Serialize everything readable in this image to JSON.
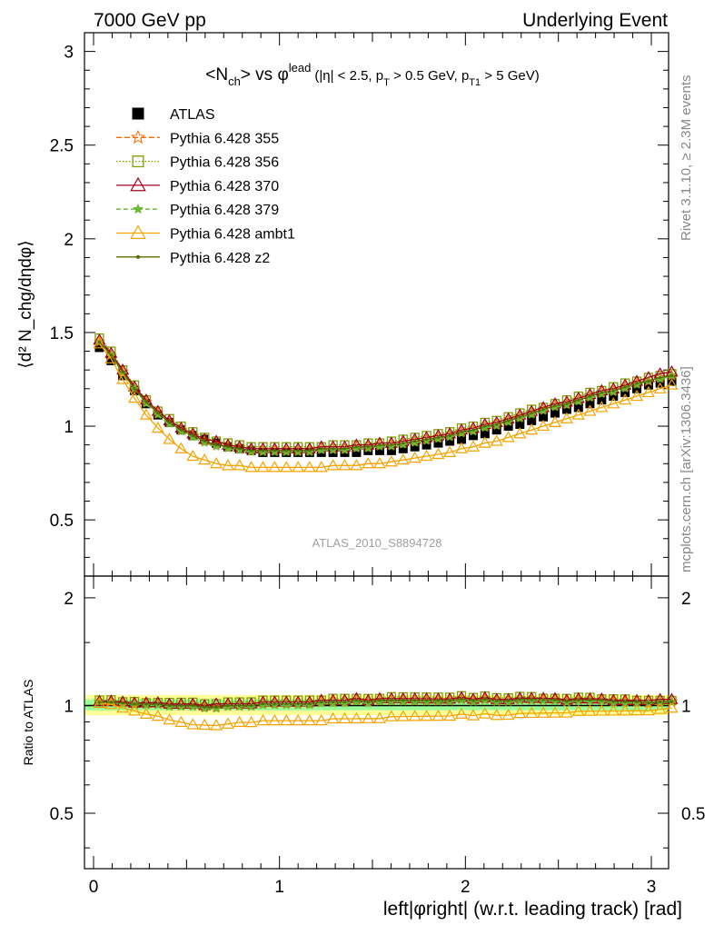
{
  "header": {
    "left": "7000 GeV pp",
    "right": "Underlying Event"
  },
  "side_labels": {
    "rivet": "Rivet 3.1.10, ≥ 2.3M events",
    "mcplots": "mcplots.cern.ch [arXiv:1306.3436]"
  },
  "analysis_id": "ATLAS_2010_S8894728",
  "title": {
    "main": "<N",
    "main_sub": "ch",
    "vs": "> vs φ",
    "vs_sup": "lead",
    "cuts_a": "(|η| < 2.5, p",
    "cuts_sub_a": "T",
    "cuts_b": " > 0.5 GeV, p",
    "cuts_sub_b": "T1",
    "cuts_c": " > 5 GeV)"
  },
  "ylabel_top": "⟨d² N_chg/dηdφ⟩",
  "ylabel_bottom": "Ratio to ATLAS",
  "xlabel": "left|φright| (w.r.t. leading track) [rad]",
  "colors": {
    "atlas": "#000000",
    "p355": "#ff6600",
    "p356": "#7f9f00",
    "p370": "#a0001a",
    "p379": "#66bb33",
    "ambt1": "#f5a300",
    "z2": "#556b00",
    "band_yellow": "#ffff99",
    "band_green": "#99ff99"
  },
  "chart_data": [
    {
      "type": "scatter",
      "panel": "main",
      "x": [
        0.0314,
        0.0942,
        0.157,
        0.22,
        0.283,
        0.346,
        0.408,
        0.471,
        0.534,
        0.597,
        0.66,
        0.723,
        0.785,
        0.848,
        0.911,
        0.974,
        1.037,
        1.1,
        1.162,
        1.225,
        1.288,
        1.351,
        1.414,
        1.477,
        1.539,
        1.602,
        1.665,
        1.728,
        1.791,
        1.854,
        1.916,
        1.979,
        2.042,
        2.105,
        2.168,
        2.231,
        2.293,
        2.356,
        2.419,
        2.482,
        2.545,
        2.608,
        2.67,
        2.733,
        2.796,
        2.859,
        2.922,
        2.985,
        3.047,
        3.11
      ],
      "xlim": [
        0,
        3.1416
      ],
      "ylim": [
        0.2,
        3.1
      ],
      "yticks": [
        0.5,
        1,
        1.5,
        2,
        2.5,
        3
      ],
      "xticks": [
        0,
        1,
        2,
        3
      ],
      "series": [
        {
          "name": "ATLAS",
          "values": [
            1.42,
            1.35,
            1.27,
            1.19,
            1.12,
            1.06,
            1.02,
            0.98,
            0.95,
            0.93,
            0.91,
            0.89,
            0.88,
            0.87,
            0.86,
            0.86,
            0.86,
            0.86,
            0.86,
            0.86,
            0.86,
            0.86,
            0.86,
            0.87,
            0.87,
            0.87,
            0.88,
            0.89,
            0.9,
            0.91,
            0.92,
            0.93,
            0.95,
            0.96,
            0.98,
            1.0,
            1.01,
            1.03,
            1.05,
            1.07,
            1.09,
            1.1,
            1.12,
            1.14,
            1.16,
            1.18,
            1.2,
            1.22,
            1.23,
            1.24
          ]
        },
        {
          "name": "Pythia 6.428 355",
          "values": [
            1.45,
            1.38,
            1.29,
            1.2,
            1.13,
            1.07,
            1.02,
            0.98,
            0.95,
            0.92,
            0.9,
            0.89,
            0.88,
            0.87,
            0.87,
            0.87,
            0.87,
            0.87,
            0.87,
            0.88,
            0.88,
            0.88,
            0.89,
            0.89,
            0.9,
            0.9,
            0.91,
            0.92,
            0.93,
            0.94,
            0.95,
            0.97,
            0.98,
            1.0,
            1.01,
            1.03,
            1.05,
            1.07,
            1.09,
            1.11,
            1.12,
            1.14,
            1.16,
            1.18,
            1.19,
            1.21,
            1.23,
            1.24,
            1.26,
            1.27
          ]
        },
        {
          "name": "Pythia 6.428 356",
          "values": [
            1.47,
            1.4,
            1.3,
            1.22,
            1.14,
            1.08,
            1.04,
            1.0,
            0.97,
            0.94,
            0.92,
            0.91,
            0.9,
            0.89,
            0.89,
            0.89,
            0.89,
            0.89,
            0.89,
            0.89,
            0.9,
            0.9,
            0.9,
            0.91,
            0.91,
            0.92,
            0.93,
            0.94,
            0.95,
            0.96,
            0.97,
            0.99,
            1.0,
            1.02,
            1.03,
            1.05,
            1.07,
            1.09,
            1.1,
            1.12,
            1.14,
            1.16,
            1.18,
            1.19,
            1.21,
            1.23,
            1.24,
            1.26,
            1.27,
            1.28
          ]
        },
        {
          "name": "Pythia 6.428 370",
          "values": [
            1.46,
            1.39,
            1.3,
            1.21,
            1.14,
            1.08,
            1.03,
            0.99,
            0.96,
            0.93,
            0.92,
            0.9,
            0.89,
            0.88,
            0.88,
            0.88,
            0.88,
            0.88,
            0.88,
            0.89,
            0.89,
            0.89,
            0.9,
            0.9,
            0.91,
            0.91,
            0.92,
            0.93,
            0.94,
            0.95,
            0.96,
            0.98,
            0.99,
            1.01,
            1.02,
            1.04,
            1.06,
            1.08,
            1.1,
            1.12,
            1.13,
            1.15,
            1.17,
            1.19,
            1.2,
            1.22,
            1.24,
            1.26,
            1.28,
            1.29
          ]
        },
        {
          "name": "Pythia 6.428 379",
          "values": [
            1.45,
            1.38,
            1.28,
            1.2,
            1.12,
            1.06,
            1.01,
            0.97,
            0.94,
            0.91,
            0.89,
            0.88,
            0.87,
            0.86,
            0.86,
            0.86,
            0.86,
            0.86,
            0.86,
            0.87,
            0.87,
            0.87,
            0.88,
            0.88,
            0.89,
            0.89,
            0.9,
            0.91,
            0.92,
            0.93,
            0.94,
            0.96,
            0.97,
            0.99,
            1.0,
            1.02,
            1.04,
            1.06,
            1.08,
            1.1,
            1.11,
            1.13,
            1.15,
            1.17,
            1.18,
            1.2,
            1.22,
            1.24,
            1.25,
            1.27
          ]
        },
        {
          "name": "Pythia 6.428 ambt1",
          "values": [
            1.44,
            1.36,
            1.25,
            1.15,
            1.06,
            0.99,
            0.93,
            0.88,
            0.84,
            0.82,
            0.8,
            0.79,
            0.79,
            0.78,
            0.78,
            0.78,
            0.78,
            0.78,
            0.78,
            0.78,
            0.79,
            0.79,
            0.79,
            0.8,
            0.8,
            0.81,
            0.82,
            0.83,
            0.84,
            0.85,
            0.86,
            0.88,
            0.89,
            0.91,
            0.92,
            0.94,
            0.96,
            0.98,
            1.0,
            1.02,
            1.04,
            1.06,
            1.08,
            1.1,
            1.12,
            1.14,
            1.16,
            1.18,
            1.2,
            1.22
          ]
        },
        {
          "name": "Pythia 6.428 z2",
          "values": [
            1.45,
            1.38,
            1.29,
            1.2,
            1.13,
            1.07,
            1.02,
            0.98,
            0.95,
            0.92,
            0.9,
            0.89,
            0.88,
            0.87,
            0.87,
            0.87,
            0.87,
            0.87,
            0.87,
            0.88,
            0.88,
            0.88,
            0.89,
            0.89,
            0.9,
            0.9,
            0.91,
            0.92,
            0.93,
            0.94,
            0.95,
            0.97,
            0.98,
            1.0,
            1.01,
            1.03,
            1.05,
            1.07,
            1.09,
            1.11,
            1.12,
            1.14,
            1.16,
            1.18,
            1.19,
            1.21,
            1.23,
            1.24,
            1.26,
            1.27
          ]
        }
      ]
    },
    {
      "type": "scatter",
      "panel": "ratio",
      "ylim": [
        0.35,
        2.3
      ],
      "yticks": [
        0.5,
        1,
        2
      ],
      "log_y": true,
      "ylabel": "Ratio to ATLAS",
      "band_yellow": [
        0.94,
        1.07
      ],
      "band_green": [
        0.97,
        1.04
      ]
    }
  ]
}
